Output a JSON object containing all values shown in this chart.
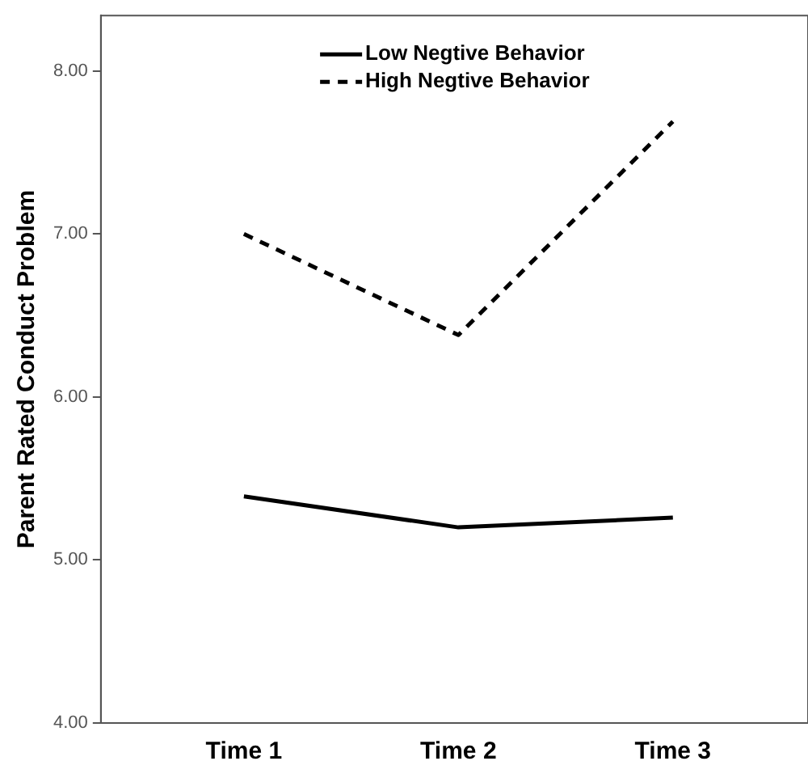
{
  "chart_data": {
    "type": "line",
    "ylabel": "Parent Rated Conduct Problem",
    "categories": [
      "Time 1",
      "Time 2",
      "Time 3"
    ],
    "series": [
      {
        "name": "Low Negtive Behavior",
        "color": "#000000",
        "line_style": "solid",
        "values": [
          5.39,
          5.2,
          5.26
        ]
      },
      {
        "name": "High Negtive Behavior",
        "color": "#000000",
        "line_style": "dashed",
        "values": [
          7.0,
          6.38,
          7.69
        ]
      }
    ],
    "ylim": [
      4,
      8.34
    ],
    "yticks": [
      {
        "value": 4,
        "label": "4.00"
      },
      {
        "value": 5,
        "label": "5.00"
      },
      {
        "value": 6,
        "label": "6.00"
      },
      {
        "value": 7,
        "label": "7.00"
      },
      {
        "value": 8,
        "label": "8.00"
      }
    ],
    "grid": false,
    "legend": "top",
    "marker": "none"
  }
}
